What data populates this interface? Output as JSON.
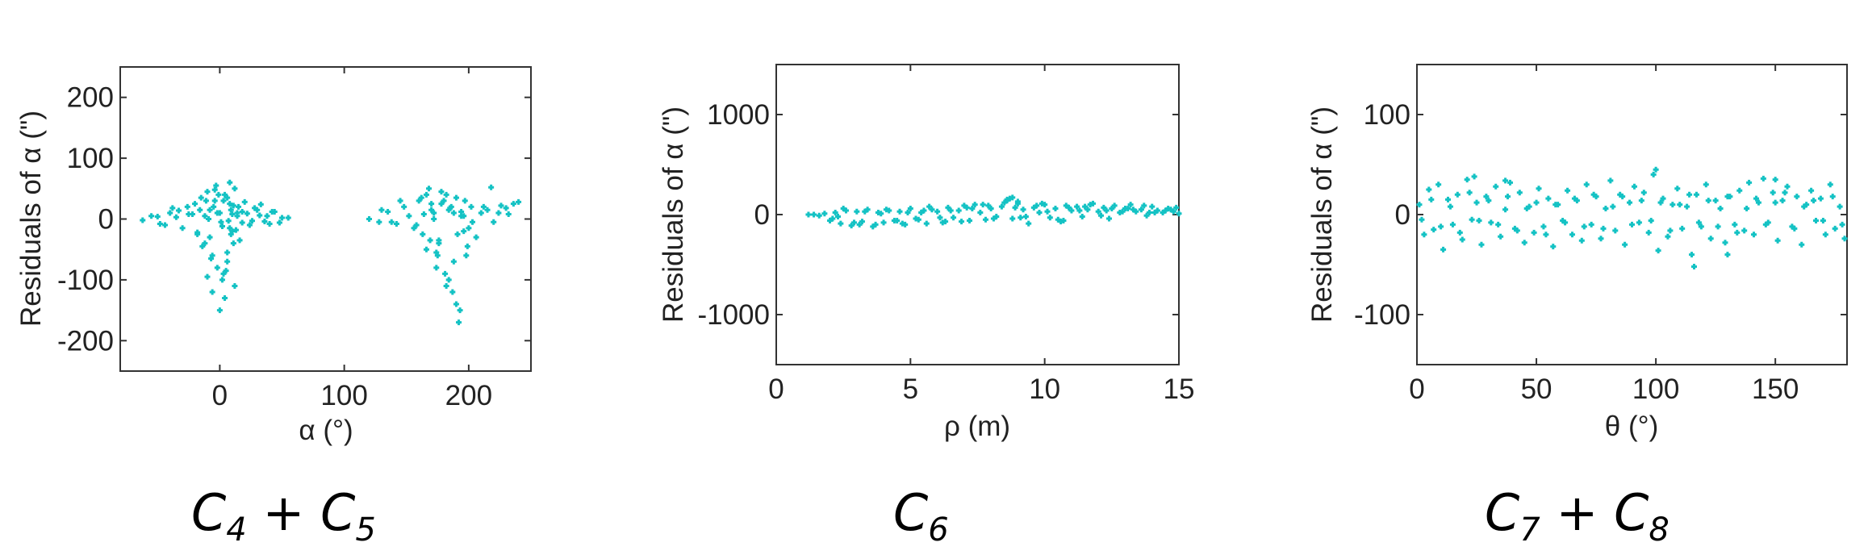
{
  "colors": {
    "marker": "#14c2c4",
    "axis": "#333333",
    "text": "#222222"
  },
  "chart_data": [
    {
      "type": "scatter",
      "caption": {
        "main": "C",
        "sub1": "4",
        "mid": " + C",
        "sub2": "5"
      },
      "xlabel": "α (°)",
      "ylabel": "Residuals of α (\")",
      "xlim": [
        -80,
        250
      ],
      "ylim": [
        -250,
        250
      ],
      "xticks": [
        0,
        100,
        200
      ],
      "xtick_labels": [
        "0",
        "100",
        "200"
      ],
      "yticks": [
        200,
        100,
        0,
        -100,
        -200
      ],
      "ytick_labels": [
        "200",
        "100",
        "0",
        "-100",
        "-200"
      ],
      "grid": false,
      "legend": "none",
      "series": [
        {
          "x": [
            -62,
            -55,
            -48,
            -40,
            -35,
            -30,
            -26,
            -22,
            -18,
            -15,
            -12,
            -10,
            -8,
            -6,
            -4,
            -2,
            0,
            2,
            4,
            6,
            8,
            10,
            12,
            14,
            16,
            18,
            20,
            24,
            28,
            32,
            36,
            42,
            48,
            55,
            -20,
            -14,
            -10,
            -6,
            -3,
            0,
            3,
            6,
            9,
            12,
            15,
            -12,
            -8,
            -4,
            1,
            5,
            8,
            11,
            14,
            -16,
            -9,
            -5,
            2,
            7,
            10,
            13,
            -18,
            -11,
            -7,
            -1,
            4,
            9,
            3,
            -2,
            6,
            8,
            11,
            -25,
            -33,
            18,
            22,
            26,
            30,
            38,
            44,
            -44,
            -50,
            -38,
            33,
            40,
            50,
            120,
            128,
            135,
            142,
            148,
            152,
            156,
            160,
            163,
            166,
            169,
            172,
            175,
            178,
            181,
            184,
            187,
            190,
            193,
            196,
            199,
            202,
            206,
            210,
            215,
            220,
            226,
            232,
            240,
            158,
            162,
            166,
            170,
            174,
            178,
            182,
            186,
            190,
            194,
            198,
            168,
            172,
            176,
            180,
            184,
            188,
            192,
            196,
            170,
            176,
            182,
            188,
            194,
            200,
            164,
            174,
            185,
            191,
            197,
            203,
            212,
            218,
            224,
            145,
            138,
            130,
            230,
            236
          ],
          "y": [
            -2,
            5,
            -8,
            10,
            3,
            -15,
            20,
            8,
            -25,
            35,
            -40,
            45,
            15,
            -60,
            30,
            -80,
            10,
            -100,
            40,
            -55,
            25,
            -20,
            50,
            5,
            -35,
            12,
            28,
            -10,
            18,
            6,
            -4,
            12,
            -6,
            2,
            25,
            -45,
            -95,
            -120,
            55,
            -150,
            30,
            -70,
            15,
            -110,
            20,
            5,
            -30,
            48,
            -5,
            -85,
            60,
            -40,
            10,
            15,
            0,
            20,
            -12,
            -3,
            8,
            -18,
            -22,
            30,
            -65,
            40,
            -130,
            -25,
            -90,
            10,
            35,
            -15,
            22,
            8,
            14,
            -6,
            9,
            -3,
            15,
            5,
            12,
            -10,
            4,
            18,
            24,
            -8,
            2,
            0,
            -5,
            12,
            -8,
            20,
            5,
            -15,
            30,
            -25,
            40,
            -35,
            10,
            -60,
            25,
            -90,
            15,
            -120,
            35,
            -150,
            5,
            -45,
            20,
            -30,
            10,
            15,
            -5,
            22,
            8,
            28,
            -10,
            35,
            -50,
            15,
            -80,
            45,
            -110,
            20,
            -140,
            5,
            -60,
            50,
            0,
            -40,
            30,
            -100,
            10,
            -170,
            -20,
            25,
            -35,
            40,
            -70,
            12,
            -15,
            8,
            -55,
            18,
            -25,
            30,
            -5,
            20,
            52,
            10,
            30,
            -5,
            15,
            18,
            25
          ],
          "name": ""
        }
      ]
    },
    {
      "type": "scatter",
      "caption": {
        "main": "C",
        "sub1": "6",
        "mid": "",
        "sub2": ""
      },
      "xlabel": "ρ (m)",
      "ylabel": "Residuals of α (\")",
      "xlim": [
        0,
        15
      ],
      "ylim": [
        -1500,
        1500
      ],
      "xticks": [
        0,
        5,
        10,
        15
      ],
      "xtick_labels": [
        "0",
        "5",
        "10",
        "15"
      ],
      "yticks": [
        1000,
        0,
        -1000
      ],
      "ytick_labels": [
        "1000",
        "0",
        "-1000"
      ],
      "grid": false,
      "legend": "none",
      "series": [
        {
          "x": [
            1.2,
            1.4,
            1.6,
            1.8,
            2.0,
            2.2,
            2.4,
            2.6,
            2.8,
            3.0,
            3.2,
            3.4,
            3.6,
            3.8,
            4.0,
            4.2,
            4.4,
            4.6,
            4.8,
            5.0,
            5.2,
            5.4,
            5.6,
            5.8,
            6.0,
            6.2,
            6.4,
            6.6,
            6.8,
            7.0,
            7.2,
            7.4,
            7.6,
            7.8,
            8.0,
            8.2,
            8.4,
            8.6,
            8.8,
            9.0,
            9.2,
            9.4,
            9.6,
            9.8,
            10.0,
            10.2,
            10.4,
            10.6,
            10.8,
            11.0,
            11.2,
            11.4,
            11.6,
            11.8,
            12.0,
            12.2,
            12.4,
            12.6,
            12.8,
            13.0,
            13.2,
            13.4,
            13.6,
            13.8,
            14.0,
            14.2,
            14.4,
            14.6,
            14.8,
            15.0,
            2.1,
            2.5,
            2.9,
            3.3,
            3.7,
            4.1,
            4.5,
            4.9,
            5.3,
            5.7,
            6.1,
            6.5,
            6.9,
            7.3,
            7.7,
            8.1,
            8.5,
            8.7,
            8.9,
            9.3,
            9.7,
            10.1,
            10.5,
            10.9,
            11.3,
            11.7,
            12.1,
            12.5,
            12.9,
            13.3,
            13.7,
            14.1,
            14.5,
            14.9,
            2.3,
            3.1,
            3.9,
            4.7,
            5.5,
            6.3,
            7.1,
            7.9,
            9.1,
            9.9,
            10.7,
            11.5,
            12.3,
            13.1,
            13.9,
            14.7,
            8.6,
            8.8,
            9.0
          ],
          "y": [
            0,
            0,
            -10,
            10,
            -60,
            20,
            -90,
            40,
            -110,
            30,
            -70,
            50,
            -120,
            20,
            -80,
            40,
            -60,
            30,
            -100,
            60,
            -40,
            20,
            -90,
            50,
            30,
            -80,
            70,
            -30,
            40,
            90,
            -60,
            100,
            20,
            -50,
            60,
            -20,
            80,
            150,
            -40,
            110,
            50,
            -90,
            70,
            20,
            100,
            -30,
            60,
            -70,
            90,
            40,
            80,
            -20,
            50,
            110,
            30,
            70,
            -40,
            90,
            20,
            60,
            100,
            30,
            50,
            -10,
            80,
            40,
            20,
            60,
            30,
            10,
            -40,
            60,
            -80,
            30,
            -100,
            50,
            -60,
            20,
            -50,
            80,
            -30,
            40,
            -70,
            60,
            100,
            -40,
            120,
            160,
            70,
            -20,
            90,
            30,
            -50,
            70,
            40,
            100,
            -10,
            60,
            30,
            50,
            90,
            20,
            40,
            70,
            -20,
            -100,
            10,
            -90,
            40,
            -70,
            70,
            90,
            -30,
            110,
            -60,
            80,
            40,
            60,
            20,
            50,
            140,
            170,
            130
          ]
        }
      ]
    },
    {
      "type": "scatter",
      "caption": {
        "main": "C",
        "sub1": "7",
        "mid": " + C",
        "sub2": "8"
      },
      "xlabel": "θ (°)",
      "ylabel": "Residuals of α (\")",
      "xlim": [
        0,
        180
      ],
      "ylim": [
        -150,
        150
      ],
      "xticks": [
        0,
        50,
        100,
        150
      ],
      "xtick_labels": [
        "0",
        "50",
        "100",
        "150"
      ],
      "yticks": [
        100,
        0,
        -100
      ],
      "ytick_labels": [
        "100",
        "0",
        "-100"
      ],
      "grid": false,
      "legend": "none",
      "series": [
        {
          "x": [
            1,
            3,
            5,
            7,
            9,
            11,
            13,
            15,
            17,
            19,
            21,
            23,
            25,
            27,
            29,
            31,
            33,
            35,
            37,
            39,
            41,
            43,
            45,
            47,
            49,
            51,
            53,
            55,
            57,
            59,
            61,
            63,
            65,
            67,
            69,
            71,
            73,
            75,
            77,
            79,
            81,
            83,
            85,
            87,
            89,
            91,
            93,
            95,
            97,
            99,
            101,
            103,
            105,
            107,
            109,
            111,
            113,
            115,
            117,
            119,
            121,
            123,
            125,
            127,
            129,
            131,
            133,
            135,
            137,
            139,
            141,
            143,
            145,
            147,
            149,
            151,
            153,
            155,
            157,
            159,
            161,
            163,
            165,
            167,
            169,
            171,
            173,
            175,
            177,
            179,
            2,
            6,
            10,
            14,
            18,
            22,
            26,
            30,
            34,
            38,
            42,
            46,
            50,
            54,
            58,
            62,
            66,
            70,
            74,
            78,
            82,
            86,
            90,
            94,
            98,
            102,
            106,
            110,
            114,
            118,
            122,
            126,
            130,
            134,
            138,
            142,
            146,
            150,
            154,
            158,
            162,
            166,
            170,
            174,
            178,
            24,
            37,
            100,
            116,
            130,
            150
          ],
          "y": [
            10,
            -20,
            25,
            -15,
            30,
            -35,
            15,
            -10,
            20,
            -25,
            35,
            -5,
            12,
            -30,
            18,
            -8,
            28,
            -22,
            5,
            32,
            -14,
            22,
            -28,
            8,
            -18,
            26,
            -12,
            16,
            -32,
            10,
            -6,
            24,
            -20,
            14,
            -26,
            30,
            -10,
            18,
            -24,
            6,
            34,
            -16,
            20,
            -30,
            12,
            28,
            -8,
            22,
            -18,
            40,
            -36,
            16,
            -22,
            10,
            26,
            -14,
            8,
            -40,
            20,
            -12,
            30,
            -24,
            14,
            6,
            -28,
            18,
            -10,
            24,
            -16,
            32,
            -20,
            12,
            36,
            -8,
            22,
            -26,
            14,
            28,
            -12,
            18,
            -30,
            10,
            24,
            -6,
            16,
            -20,
            30,
            -14,
            8,
            -24,
            -5,
            15,
            -12,
            8,
            -18,
            22,
            -6,
            14,
            -10,
            18,
            -16,
            6,
            12,
            -20,
            10,
            -8,
            16,
            -12,
            20,
            -14,
            8,
            18,
            -10,
            14,
            -6,
            12,
            -16,
            10,
            20,
            -8,
            14,
            -12,
            18,
            -18,
            6,
            16,
            -10,
            12,
            22,
            -14,
            8,
            14,
            -6,
            18,
            -10,
            38,
            34,
            45,
            -52,
            -40,
            35
          ]
        }
      ]
    }
  ]
}
